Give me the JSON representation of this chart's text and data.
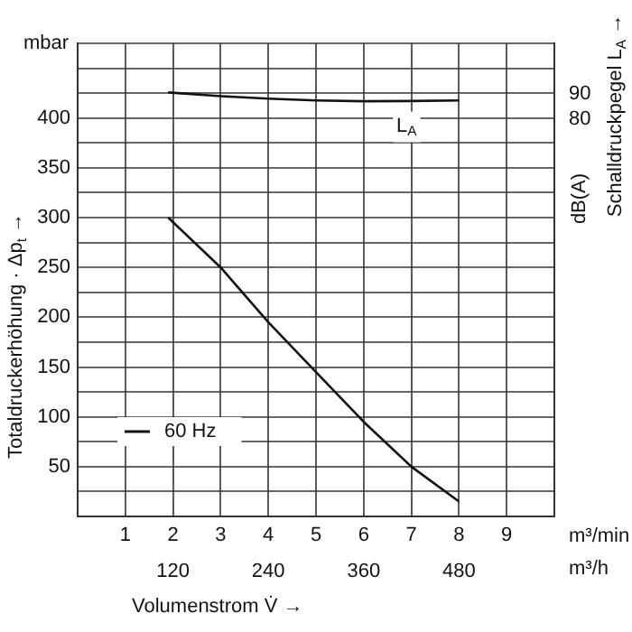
{
  "chart_data": {
    "type": "line",
    "xlabel": "Volumenstrom V̇ →",
    "ylabel": "Totaldruckerhöhung · Δp$_{t}$ →",
    "y2label": "Schalldruckpegel L$_{A}$ →",
    "x": [
      1.9,
      3,
      4,
      5,
      6,
      7,
      8
    ],
    "series": [
      {
        "name": "60 Hz",
        "color": "#111111",
        "values": [
          300,
          250,
          195,
          145,
          95,
          50,
          15
        ]
      },
      {
        "color": "#111111",
        "axis": "y2",
        "values": [
          90.5,
          89,
          88,
          87.3,
          87,
          87.1,
          87.3
        ]
      }
    ],
    "xlim": [
      0,
      10
    ],
    "xticks": [
      {
        "value": 0,
        "label": null
      },
      1,
      2,
      3,
      4,
      5,
      6,
      7,
      8,
      9,
      {
        "value": 10,
        "label": null
      }
    ],
    "x2lim": [
      0,
      600
    ],
    "x2ticks": [
      120,
      240,
      360,
      480
    ],
    "ylim": [
      0,
      475
    ],
    "yticks": [
      {
        "value": 0,
        "label": null
      },
      {
        "value": 25,
        "label": null
      },
      50,
      {
        "value": 75,
        "label": null
      },
      100,
      {
        "value": 125,
        "label": null
      },
      150,
      {
        "value": 175,
        "label": null
      },
      200,
      {
        "value": 225,
        "label": null
      },
      250,
      {
        "value": 275,
        "label": null
      },
      300,
      {
        "value": 325,
        "label": null
      },
      350,
      {
        "value": 375,
        "label": null
      },
      400,
      {
        "value": 425,
        "label": null
      },
      {
        "value": 450,
        "label": null
      },
      {
        "value": 475,
        "label": null
      }
    ],
    "y2lim": [
      -78,
      110
    ],
    "y2ticks": [
      80,
      90
    ],
    "annotations": [
      "mbar",
      "dB(A)",
      "m³/min",
      "m³/h",
      "L$_{A}$"
    ],
    "grid": true,
    "legend": "bottom left",
    "marker": "none",
    "line_style": "solid"
  }
}
